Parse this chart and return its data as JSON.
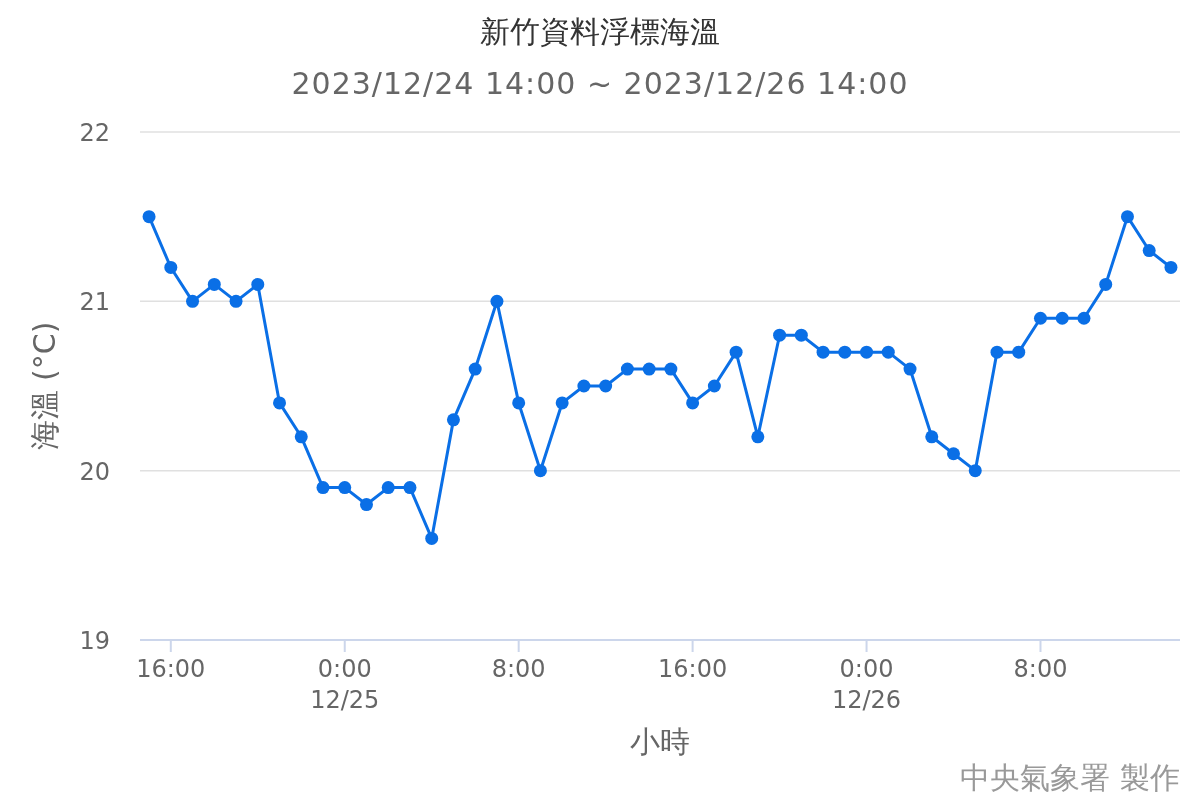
{
  "chart_data": {
    "type": "line",
    "title": "新竹資料浮標海溫",
    "subtitle": "2023/12/24 14:00 ~ 2023/12/26 14:00",
    "xlabel": "小時",
    "ylabel": "海溫 (°C)",
    "annotations": [
      "中央氣象署 製作"
    ],
    "x": [
      "2023-12-24T15:00",
      "2023-12-24T16:00",
      "2023-12-24T17:00",
      "2023-12-24T18:00",
      "2023-12-24T19:00",
      "2023-12-24T20:00",
      "2023-12-24T21:00",
      "2023-12-24T22:00",
      "2023-12-24T23:00",
      "2023-12-25T00:00",
      "2023-12-25T01:00",
      "2023-12-25T02:00",
      "2023-12-25T03:00",
      "2023-12-25T04:00",
      "2023-12-25T05:00",
      "2023-12-25T06:00",
      "2023-12-25T07:00",
      "2023-12-25T08:00",
      "2023-12-25T09:00",
      "2023-12-25T10:00",
      "2023-12-25T11:00",
      "2023-12-25T12:00",
      "2023-12-25T13:00",
      "2023-12-25T14:00",
      "2023-12-25T15:00",
      "2023-12-25T16:00",
      "2023-12-25T17:00",
      "2023-12-25T18:00",
      "2023-12-25T19:00",
      "2023-12-25T20:00",
      "2023-12-25T21:00",
      "2023-12-25T22:00",
      "2023-12-25T23:00",
      "2023-12-26T00:00",
      "2023-12-26T01:00",
      "2023-12-26T02:00",
      "2023-12-26T03:00",
      "2023-12-26T04:00",
      "2023-12-26T05:00",
      "2023-12-26T06:00",
      "2023-12-26T07:00",
      "2023-12-26T08:00",
      "2023-12-26T09:00",
      "2023-12-26T10:00",
      "2023-12-26T11:00",
      "2023-12-26T12:00",
      "2023-12-26T13:00",
      "2023-12-26T14:00"
    ],
    "series": [
      {
        "color": "#0a6fe6",
        "values": [
          21.5,
          21.2,
          21.0,
          21.1,
          21.0,
          21.1,
          20.4,
          20.2,
          19.9,
          19.9,
          19.8,
          19.9,
          19.9,
          19.6,
          20.3,
          20.6,
          21.0,
          20.4,
          20.0,
          20.4,
          20.5,
          20.5,
          20.6,
          20.6,
          20.6,
          20.4,
          20.5,
          20.7,
          20.2,
          20.8,
          20.8,
          20.7,
          20.7,
          20.7,
          20.7,
          20.6,
          20.2,
          20.1,
          20.0,
          20.7,
          20.7,
          20.9,
          20.9,
          20.9,
          21.1,
          21.5,
          21.3,
          21.2
        ]
      }
    ],
    "xlim": [
      "2023-12-24T14:35",
      "2023-12-26T14:25"
    ],
    "xticks": [
      {
        "value": "2023-12-24T16:00",
        "label": "16:00"
      },
      {
        "value": "2023-12-25T00:00",
        "label": "0:00\n12/25"
      },
      {
        "value": "2023-12-25T08:00",
        "label": "8:00"
      },
      {
        "value": "2023-12-25T16:00",
        "label": "16:00"
      },
      {
        "value": "2023-12-26T00:00",
        "label": "0:00\n12/26"
      },
      {
        "value": "2023-12-26T08:00",
        "label": "8:00"
      }
    ],
    "ylim": [
      19,
      22
    ],
    "yticks": [
      19,
      20,
      21,
      22
    ],
    "grid": "y",
    "marker": "circle",
    "line_style": "solid"
  }
}
